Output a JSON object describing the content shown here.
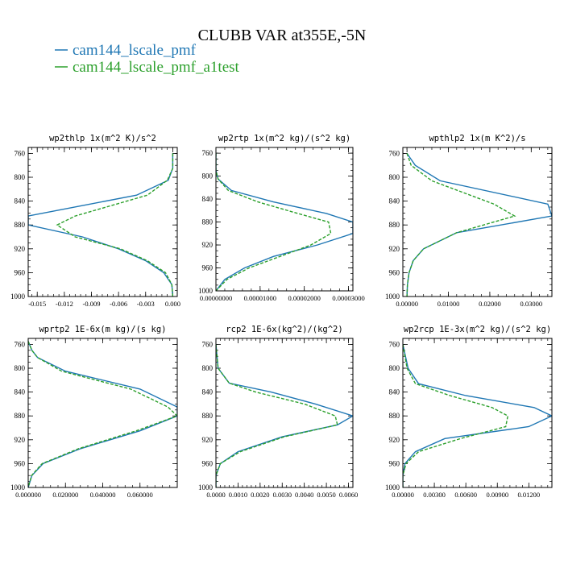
{
  "figure": {
    "title": "CLUBB VAR at355E,-5N",
    "legend": [
      {
        "label": "cam144_lscale_pmf",
        "color": "#1f77b4",
        "dash": "solid"
      },
      {
        "label": "cam144_lscale_pmf_a1test",
        "color": "#2ca02c",
        "dash": "dashed"
      }
    ]
  },
  "chart_data": [
    {
      "type": "line",
      "title": "wp2thlp  1x(m^2 K)/s^2",
      "xlim": [
        -0.016,
        0.0005
      ],
      "ylim": [
        1000,
        750
      ],
      "yticks": [
        760,
        800,
        840,
        880,
        920,
        960,
        1000
      ],
      "yticklabels": [
        "760",
        "800",
        "840",
        "880",
        "920",
        "960",
        "1000"
      ],
      "xticks": [
        -0.015,
        -0.012,
        -0.009,
        -0.006,
        -0.003,
        0.0
      ],
      "xticklabels": [
        "-0.015",
        "-0.012",
        "-0.009",
        "-0.006",
        "-0.003",
        "0.000"
      ],
      "series": [
        {
          "name": "cam144_lscale_pmf",
          "color": "#1f77b4",
          "dash": "solid",
          "y": [
            760,
            785,
            805,
            830,
            865,
            880,
            900,
            920,
            940,
            960,
            980,
            1000
          ],
          "x": [
            0.0,
            0.0,
            -0.0005,
            -0.004,
            -0.016,
            -0.016,
            -0.01,
            -0.006,
            -0.003,
            -0.001,
            -0.0001,
            0.0
          ]
        },
        {
          "name": "cam144_lscale_pmf_a1test",
          "color": "#2ca02c",
          "dash": "dashed",
          "y": [
            760,
            785,
            805,
            830,
            865,
            880,
            900,
            920,
            940,
            960,
            980,
            1000
          ],
          "x": [
            0.0,
            0.0,
            -0.0006,
            -0.0028,
            -0.0108,
            -0.0128,
            -0.0108,
            -0.0058,
            -0.0028,
            -0.0008,
            -0.0001,
            0.0
          ]
        }
      ]
    },
    {
      "type": "line",
      "title": "wp2rtp  1x(m^2 kg)/(s^2 kg)",
      "xlim": [
        0.0,
        3.1e-05
      ],
      "ylim": [
        1000,
        750
      ],
      "yticks": [
        760,
        800,
        840,
        880,
        920,
        960,
        1000
      ],
      "yticklabels": [
        "760",
        "800",
        "840",
        "880",
        "920",
        "960",
        "1000"
      ],
      "xticks": [
        0.0,
        1e-05,
        2e-05,
        3e-05
      ],
      "xticklabels": [
        "0.00000000",
        "0.00001000",
        "0.00002000",
        "0.00003000"
      ],
      "series": [
        {
          "name": "cam144_lscale_pmf",
          "color": "#1f77b4",
          "dash": "solid",
          "y": [
            760,
            790,
            805,
            825,
            845,
            865,
            880,
            900,
            920,
            940,
            960,
            980,
            1000
          ],
          "x": [
            0.0,
            0.0,
            5e-07,
            3.5e-06,
            1.3e-05,
            2.5e-05,
            3.1e-05,
            3.1e-05,
            2.3e-05,
            1.3e-05,
            6.5e-06,
            2e-06,
            0.0
          ]
        },
        {
          "name": "cam144_lscale_pmf_a1test",
          "color": "#2ca02c",
          "dash": "dashed",
          "y": [
            760,
            790,
            805,
            825,
            845,
            865,
            880,
            900,
            920,
            940,
            960,
            980,
            1000
          ],
          "x": [
            0.0,
            0.0,
            5e-07,
            2.8e-06,
            9.5e-06,
            1.85e-05,
            2.55e-05,
            2.6e-05,
            2.15e-05,
            1.45e-05,
            7.5e-06,
            2.5e-06,
            0.0
          ]
        }
      ]
    },
    {
      "type": "line",
      "title": "wpthlp2  1x(m K^2)/s",
      "xlim": [
        -0.001,
        0.035
      ],
      "ylim": [
        1000,
        750
      ],
      "yticks": [
        760,
        800,
        840,
        880,
        920,
        960,
        1000
      ],
      "yticklabels": [
        "760",
        "800",
        "840",
        "880",
        "920",
        "960",
        "1000"
      ],
      "xticks": [
        0.0,
        0.01,
        0.02,
        0.03
      ],
      "xticklabels": [
        "0.00000",
        "0.01000",
        "0.02000",
        "0.03000"
      ],
      "series": [
        {
          "name": "cam144_lscale_pmf",
          "color": "#1f77b4",
          "dash": "solid",
          "y": [
            760,
            780,
            806,
            845,
            865,
            893,
            920,
            940,
            960,
            980,
            1000
          ],
          "x": [
            0.0,
            0.002,
            0.008,
            0.034,
            0.035,
            0.012,
            0.004,
            0.0015,
            0.0005,
            0.0001,
            0.0
          ]
        },
        {
          "name": "cam144_lscale_pmf_a1test",
          "color": "#2ca02c",
          "dash": "dashed",
          "y": [
            760,
            780,
            806,
            845,
            865,
            893,
            920,
            940,
            960,
            980,
            1000
          ],
          "x": [
            0.0,
            0.001,
            0.006,
            0.021,
            0.026,
            0.012,
            0.004,
            0.0015,
            0.0005,
            0.0001,
            0.0
          ]
        }
      ]
    },
    {
      "type": "line",
      "title": "wprtp2  1E-6x(m kg)/(s kg)",
      "xlim": [
        0.0,
        0.08
      ],
      "ylim": [
        1000,
        750
      ],
      "yticks": [
        760,
        800,
        840,
        880,
        920,
        960,
        1000
      ],
      "yticklabels": [
        "760",
        "800",
        "840",
        "880",
        "920",
        "960",
        "1000"
      ],
      "xticks": [
        0.0,
        0.02,
        0.04,
        0.06
      ],
      "xticklabels": [
        "0.000000",
        "0.020000",
        "0.040000",
        "0.060000"
      ],
      "series": [
        {
          "name": "cam144_lscale_pmf",
          "color": "#1f77b4",
          "dash": "solid",
          "y": [
            755,
            770,
            782,
            805,
            835,
            865,
            880,
            905,
            935,
            960,
            980,
            1000
          ],
          "x": [
            0.0,
            0.002,
            0.005,
            0.02,
            0.06,
            0.08,
            0.08,
            0.06,
            0.028,
            0.008,
            0.002,
            0.0
          ]
        },
        {
          "name": "cam144_lscale_pmf_a1test",
          "color": "#2ca02c",
          "dash": "dashed",
          "y": [
            755,
            770,
            782,
            805,
            835,
            865,
            880,
            905,
            935,
            960,
            980,
            1000
          ],
          "x": [
            0.0,
            0.002,
            0.005,
            0.018,
            0.055,
            0.075,
            0.08,
            0.058,
            0.027,
            0.0075,
            0.0018,
            0.0
          ]
        }
      ]
    },
    {
      "type": "line",
      "title": "rcp2  1E-6x(kg^2)/(kg^2)",
      "xlim": [
        0.0,
        0.0062
      ],
      "ylim": [
        1000,
        750
      ],
      "yticks": [
        760,
        800,
        840,
        880,
        920,
        960,
        1000
      ],
      "yticklabels": [
        "760",
        "800",
        "840",
        "880",
        "920",
        "960",
        "1000"
      ],
      "xticks": [
        0.0,
        0.001,
        0.002,
        0.003,
        0.004,
        0.005,
        0.006
      ],
      "xticklabels": [
        "0.0000",
        "0.0010",
        "0.0020",
        "0.0030",
        "0.0040",
        "0.0050",
        "0.0060"
      ],
      "series": [
        {
          "name": "cam144_lscale_pmf",
          "color": "#1f77b4",
          "dash": "solid",
          "y": [
            760,
            800,
            825,
            840,
            860,
            880,
            895,
            915,
            940,
            960,
            980,
            1000
          ],
          "x": [
            0.0,
            0.0001,
            0.0006,
            0.0025,
            0.0045,
            0.0062,
            0.0055,
            0.003,
            0.001,
            0.0002,
            0.0,
            0.0
          ]
        },
        {
          "name": "cam144_lscale_pmf_a1test",
          "color": "#2ca02c",
          "dash": "dashed",
          "y": [
            760,
            800,
            825,
            840,
            860,
            880,
            895,
            915,
            940,
            960,
            980,
            1000
          ],
          "x": [
            0.0,
            0.0001,
            0.0006,
            0.0018,
            0.004,
            0.0054,
            0.0055,
            0.0031,
            0.0011,
            0.0002,
            0.0,
            0.0
          ]
        }
      ]
    },
    {
      "type": "line",
      "title": "wp2rcp  1E-3x(m^2 kg)/(s^2 kg)",
      "xlim": [
        0.0,
        0.0142
      ],
      "ylim": [
        1000,
        750
      ],
      "yticks": [
        760,
        800,
        840,
        880,
        920,
        960,
        1000
      ],
      "yticklabels": [
        "760",
        "800",
        "840",
        "880",
        "920",
        "960",
        "1000"
      ],
      "xticks": [
        0.0,
        0.003,
        0.006,
        0.009,
        0.012
      ],
      "xticklabels": [
        "0.00000",
        "0.00300",
        "0.00600",
        "0.00900",
        "0.01200"
      ],
      "series": [
        {
          "name": "cam144_lscale_pmf",
          "color": "#1f77b4",
          "dash": "solid",
          "y": [
            760,
            800,
            826,
            846,
            866,
            880,
            898,
            918,
            940,
            960,
            980,
            1000
          ],
          "x": [
            0.0,
            0.0005,
            0.0015,
            0.006,
            0.0125,
            0.0142,
            0.012,
            0.004,
            0.0012,
            0.0002,
            0.0,
            0.0
          ]
        },
        {
          "name": "cam144_lscale_pmf_a1test",
          "color": "#2ca02c",
          "dash": "dashed",
          "y": [
            760,
            800,
            826,
            846,
            866,
            880,
            898,
            918,
            940,
            960,
            980,
            1000
          ],
          "x": [
            0.0,
            0.0004,
            0.0012,
            0.0045,
            0.0085,
            0.01,
            0.0098,
            0.0055,
            0.0015,
            0.0003,
            0.0,
            0.0
          ]
        }
      ]
    }
  ]
}
